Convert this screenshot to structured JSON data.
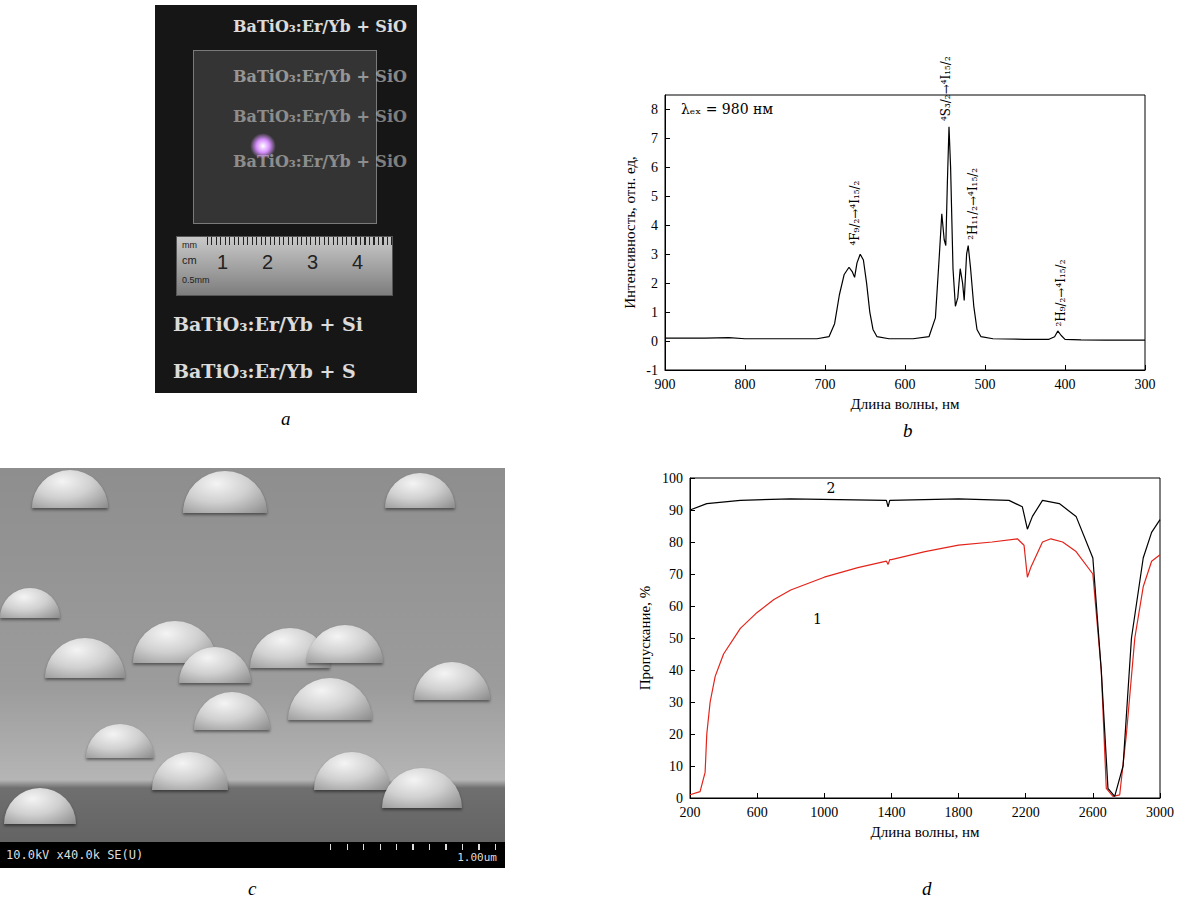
{
  "photo": {
    "label": "a",
    "lines": [
      "BaTiO₃:Er/Yb + SiO",
      "BaTiO₃:Er/Yb + SiO",
      "BaTiO₃:Er/Yb + SiO",
      "BaTiO₃:Er/Yb + SiO",
      "BaTiO₃:Er/Yb + Si",
      "BaTiO₃:Er/Yb + S"
    ],
    "ruler_labels": [
      "mm",
      "cm",
      "0.5mm",
      "1",
      "2",
      "3",
      "4"
    ]
  },
  "micrograph": {
    "label": "c",
    "info": "10.0kV x40.0k SE(U)",
    "scale": "1.00um"
  },
  "chart_data": [
    {
      "label": "b",
      "type": "line",
      "x_label": "Длина волны, нм",
      "y_label": "Интенсивность, отн. ед,",
      "xlim": [
        900,
        300
      ],
      "xticks": [
        900,
        800,
        700,
        600,
        500,
        400,
        300
      ],
      "ylim": [
        -1,
        8.5
      ],
      "yticks": [
        -1,
        0,
        1,
        2,
        3,
        4,
        5,
        6,
        7,
        8
      ],
      "grid": false,
      "x": [
        900,
        850,
        820,
        800,
        750,
        710,
        695,
        688,
        682,
        676,
        670,
        666,
        663,
        660,
        656,
        652,
        648,
        644,
        640,
        635,
        620,
        590,
        570,
        562,
        557,
        554,
        551,
        549,
        547,
        545,
        543,
        540,
        537,
        534,
        531,
        528,
        526,
        523,
        521,
        518,
        514,
        510,
        505,
        490,
        450,
        420,
        413,
        409,
        405,
        400,
        380,
        350,
        300
      ],
      "series": [
        {
          "color": "#000000",
          "values": [
            0.1,
            0.1,
            0.12,
            0.08,
            0.08,
            0.08,
            0.15,
            0.6,
            1.6,
            2.3,
            2.55,
            2.4,
            2.2,
            2.7,
            3.0,
            2.8,
            2.0,
            1.0,
            0.4,
            0.15,
            0.08,
            0.08,
            0.15,
            0.8,
            3.0,
            4.4,
            3.5,
            3.3,
            5.5,
            7.4,
            6.0,
            2.5,
            1.2,
            1.5,
            2.5,
            2.0,
            1.4,
            3.0,
            3.3,
            2.5,
            1.2,
            0.4,
            0.15,
            0.08,
            0.06,
            0.06,
            0.15,
            0.35,
            0.2,
            0.06,
            0.04,
            0.03,
            0.03
          ]
        }
      ],
      "annotations": [
        {
          "text": "λₑₓ = 980 нм",
          "x": 880,
          "y": 8.0
        }
      ],
      "peak_labels": [
        {
          "text": "⁴F₉/₂→⁴I₁₅/₂",
          "x": 662,
          "y": 3.3
        },
        {
          "text": "⁴S₃/₂→⁴I₁₅/₂",
          "x": 549,
          "y": 7.6
        },
        {
          "text": "²H₁₁/₂→⁴I₁₅/₂",
          "x": 515,
          "y": 3.5
        },
        {
          "text": "²H₉/₂→⁴I₁₅/₂",
          "x": 405,
          "y": 0.5
        }
      ]
    },
    {
      "label": "d",
      "type": "line",
      "x_label": "Длина волны, нм",
      "y_label": "Пропускание, %",
      "xlim": [
        200,
        3000
      ],
      "xticks": [
        200,
        600,
        1000,
        1400,
        1800,
        2200,
        2600,
        3000
      ],
      "ylim": [
        0,
        100
      ],
      "yticks": [
        0,
        10,
        20,
        30,
        40,
        50,
        60,
        70,
        80,
        90,
        100
      ],
      "grid": false,
      "series": [
        {
          "color": "#e3241b",
          "x": [
            200,
            260,
            290,
            300,
            320,
            350,
            400,
            500,
            600,
            700,
            800,
            1000,
            1200,
            1370,
            1380,
            1390,
            1400,
            1600,
            1800,
            2000,
            2150,
            2190,
            2210,
            2230,
            2300,
            2350,
            2420,
            2500,
            2600,
            2650,
            2680,
            2720,
            2760,
            2800,
            2850,
            2900,
            2950,
            3000
          ],
          "values": [
            1,
            2,
            8,
            20,
            30,
            38,
            45,
            53,
            58,
            62,
            65,
            69,
            72,
            74,
            73,
            74.5,
            74.5,
            77,
            79,
            80,
            81,
            79,
            69,
            72,
            80,
            81,
            80,
            77,
            70,
            40,
            3,
            0.5,
            1,
            20,
            50,
            66,
            74,
            76
          ]
        },
        {
          "color": "#000000",
          "x": [
            200,
            300,
            500,
            800,
            1370,
            1380,
            1390,
            1800,
            2100,
            2180,
            2210,
            2240,
            2300,
            2400,
            2500,
            2600,
            2650,
            2690,
            2730,
            2780,
            2830,
            2900,
            2950,
            3000
          ],
          "values": [
            90,
            92,
            93,
            93.5,
            93,
            91,
            93,
            93.5,
            93,
            91,
            84,
            88,
            93,
            92,
            88,
            75,
            40,
            3,
            0.5,
            10,
            50,
            75,
            83,
            87
          ]
        }
      ],
      "annotations": [
        {
          "text": "1",
          "x": 960,
          "y": 56
        },
        {
          "text": "2",
          "x": 1040,
          "y": 97
        }
      ]
    }
  ]
}
